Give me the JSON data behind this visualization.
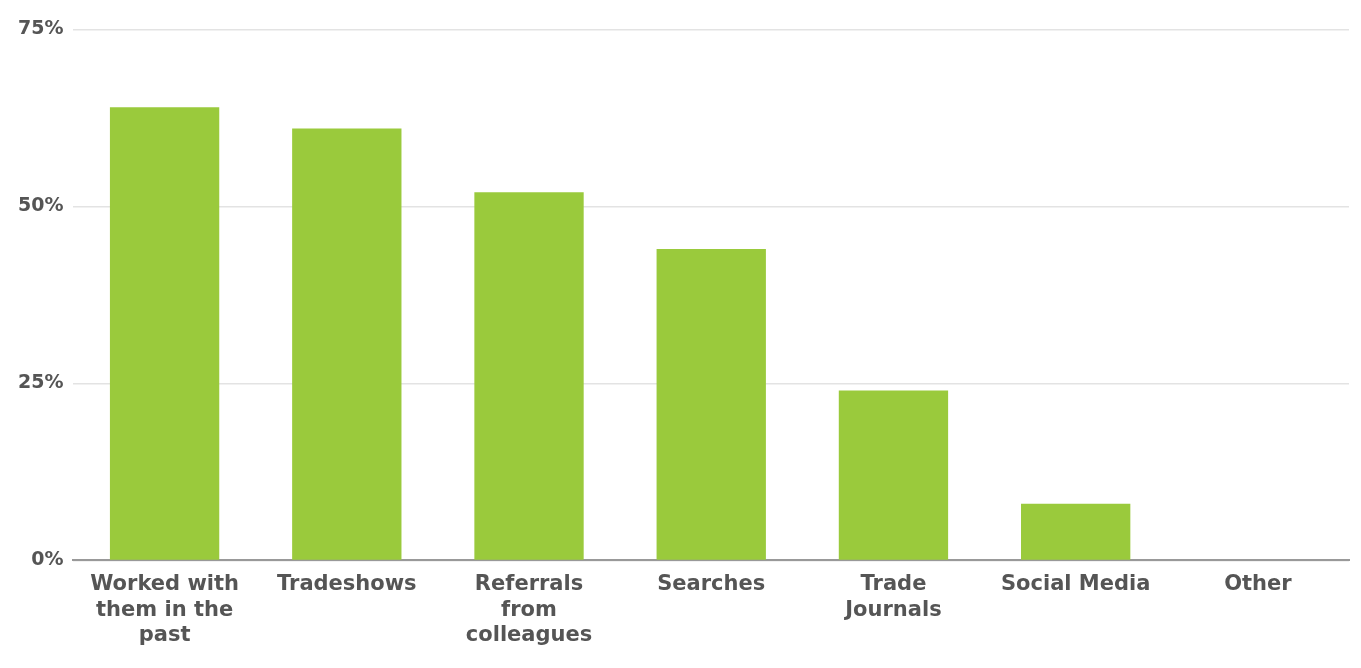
{
  "chart_data": {
    "type": "bar",
    "categories": [
      "Worked with them in the past",
      "Tradeshows",
      "Referrals from colleagues",
      "Searches",
      "Trade Journals",
      "Social Media",
      "Other"
    ],
    "values": [
      64,
      61,
      52,
      44,
      24,
      8,
      0
    ],
    "color": "#9aca3c",
    "ylim": [
      0,
      75
    ],
    "yticks": [
      {
        "value": 0,
        "label": "0%"
      },
      {
        "value": 25,
        "label": "25%"
      },
      {
        "value": 50,
        "label": "50%"
      },
      {
        "value": 75,
        "label": "75%"
      }
    ],
    "grid": "y"
  }
}
